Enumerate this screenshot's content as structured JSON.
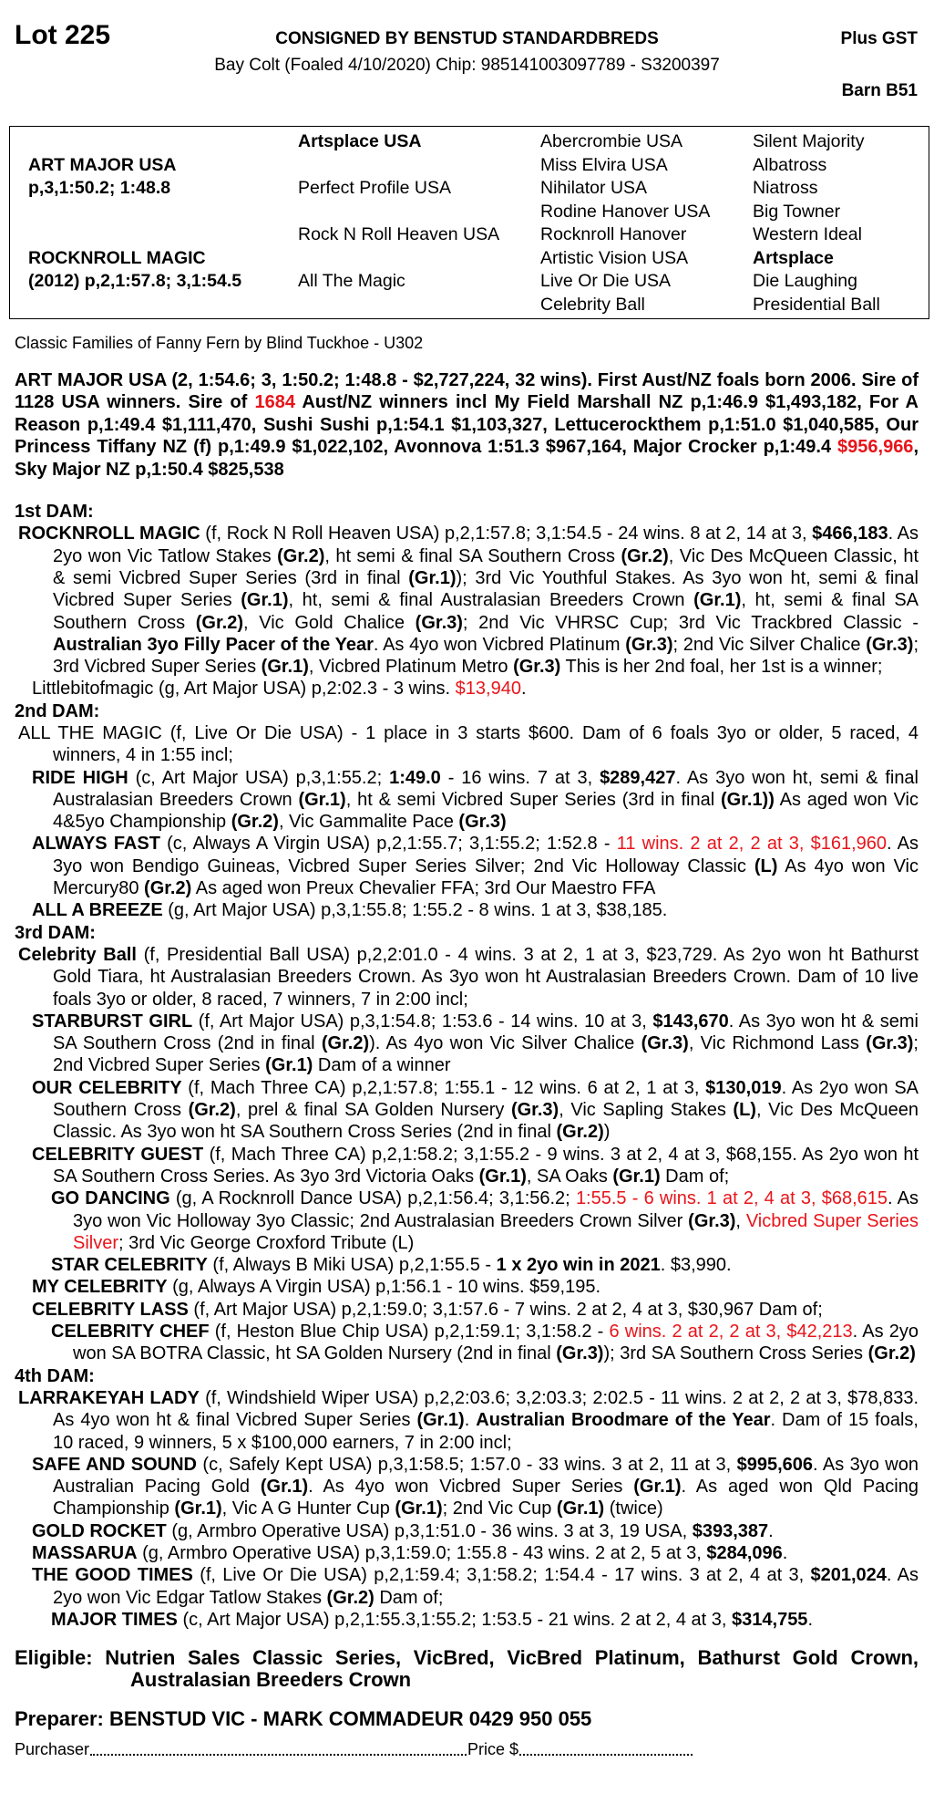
{
  "header": {
    "lot": "Lot 225",
    "consigned": "CONSIGNED BY BENSTUD STANDARDBREDS",
    "gst": "Plus GST",
    "description": "Bay Colt (Foaled 4/10/2020) Chip: 985141003097789 - S3200397",
    "barn": "Barn B51"
  },
  "pedigree": {
    "sire": "ART MAJOR USA",
    "sire_record": "p,3,1:50.2; 1:48.8",
    "dam": "ROCKNROLL MAGIC",
    "dam_record": "(2012) p,2,1:57.8; 3,1:54.5",
    "gen2": [
      "Artsplace USA",
      "Perfect Profile USA",
      "Rock N Roll Heaven USA",
      "All The Magic"
    ],
    "gen3": [
      "Abercrombie USA",
      "Miss Elvira USA",
      "Nihilator USA",
      "Rodine Hanover USA",
      "Rocknroll Hanover",
      "Artistic Vision USA",
      "Live Or Die USA",
      "Celebrity Ball"
    ],
    "gen4": [
      "Silent Majority",
      "Albatross",
      "Niatross",
      "Big Towner",
      "Western Ideal",
      "Artsplace",
      "Die Laughing",
      "Presidential Ball"
    ]
  },
  "family": "Classic Families of Fanny Fern by Blind Tuckhoe - U302",
  "colors": {
    "highlight": "#e8141a"
  },
  "sire_para": [
    [
      "ART MAJOR USA (2, 1:54.6; 3, 1:50.2; 1:48.8 - $2,727,224, 32 wins). First Aust/NZ foals born 2006. Sire of 1128 USA winners. Sire of ",
      ""
    ],
    [
      "1684",
      "r"
    ],
    [
      " Aust/NZ winners incl My Field Marshall NZ p,1:46.9 $1,493,182, For A Reason p,1:49.4 $1,111,470, Sushi Sushi p,1:54.1 $1,103,327, Lettucerockthem p,1:51.0 $1,040,585, Our Princess Tiffany NZ (f) p,1:49.9 $1,022,102, Avonnova 1:51.3 $967,164, Major Crocker p,1:49.4 ",
      ""
    ],
    [
      "$956,966",
      "r"
    ],
    [
      ", Sky Major NZ p,1:50.4 $825,538",
      ""
    ]
  ],
  "dams": [
    {
      "heading": "1st DAM:",
      "entries": [
        {
          "level": 0,
          "segs": [
            [
              "ROCKNROLL MAGIC",
              "b"
            ],
            [
              " (f, Rock N Roll Heaven USA) p,2,1:57.8; 3,1:54.5 - 24 wins. 8 at 2, 14 at 3, ",
              ""
            ],
            [
              "$466,183",
              "b"
            ],
            [
              ". As 2yo won Vic Tatlow Stakes ",
              ""
            ],
            [
              "(Gr.2)",
              "b"
            ],
            [
              ", ht semi & final SA Southern Cross ",
              ""
            ],
            [
              "(Gr.2)",
              "b"
            ],
            [
              ", Vic Des McQueen Classic, ht & semi Vicbred Super Series (3rd in final ",
              ""
            ],
            [
              "(Gr.1)",
              "b"
            ],
            [
              "); 3rd Vic Youthful Stakes. As 3yo won ht, semi & final Vicbred Super Series ",
              ""
            ],
            [
              "(Gr.1)",
              "b"
            ],
            [
              ", ht, semi & final Australasian Breeders Crown ",
              ""
            ],
            [
              "(Gr.1)",
              "b"
            ],
            [
              ", ht, semi & final SA Southern Cross ",
              ""
            ],
            [
              "(Gr.2)",
              "b"
            ],
            [
              ", Vic Gold Chalice ",
              ""
            ],
            [
              "(Gr.3)",
              "b"
            ],
            [
              "; 2nd Vic VHRSC Cup; 3rd Vic Trackbred Classic -",
              ""
            ],
            [
              "Australian 3yo Filly Pacer of the Year",
              "b"
            ],
            [
              ". As 4yo won Vicbred Platinum ",
              ""
            ],
            [
              "(Gr.3)",
              "b"
            ],
            [
              "; 2nd Vic Silver Chalice ",
              ""
            ],
            [
              "(Gr.3)",
              "b"
            ],
            [
              "; 3rd Vicbred Super Series ",
              ""
            ],
            [
              "(Gr.1)",
              "b"
            ],
            [
              ", Vicbred Platinum Metro ",
              ""
            ],
            [
              "(Gr.3)",
              "b"
            ],
            [
              " This is her 2nd foal, her 1st is a winner;",
              ""
            ]
          ]
        },
        {
          "level": 1,
          "segs": [
            [
              "Littlebitofmagic (g, Art Major USA) p,2:02.3 - 3 wins. ",
              ""
            ],
            [
              "$13,940",
              "r"
            ],
            [
              ".",
              ""
            ]
          ]
        }
      ]
    },
    {
      "heading": "2nd DAM:",
      "entries": [
        {
          "level": 0,
          "segs": [
            [
              "ALL THE MAGIC (f, Live Or Die USA) - 1 place in 3 starts $600. Dam of 6 foals 3yo or older, 5 raced, 4 winners, 4 in 1:55 incl;",
              ""
            ]
          ]
        },
        {
          "level": 1,
          "segs": [
            [
              "RIDE HIGH",
              "b"
            ],
            [
              " (c, Art Major USA) p,3,1:55.2; ",
              ""
            ],
            [
              "1:49.0",
              "b"
            ],
            [
              " - 16 wins. 7 at 3, ",
              ""
            ],
            [
              "$289,427",
              "b"
            ],
            [
              ". As 3yo won ht, semi & final Australasian Breeders Crown ",
              ""
            ],
            [
              "(Gr.1)",
              "b"
            ],
            [
              ", ht & semi Vicbred Super Series (3rd in final ",
              ""
            ],
            [
              "(Gr.1))",
              "b"
            ],
            [
              " As aged won Vic 4&5yo Championship ",
              ""
            ],
            [
              "(Gr.2)",
              "b"
            ],
            [
              ", Vic Gammalite Pace ",
              ""
            ],
            [
              "(Gr.3)",
              "b"
            ]
          ]
        },
        {
          "level": 1,
          "segs": [
            [
              "ALWAYS FAST",
              "b"
            ],
            [
              " (c, Always A Virgin USA) p,2,1:55.7; 3,1:55.2; 1:52.8 - ",
              ""
            ],
            [
              "11 wins. 2 at 2, 2 at 3, $161,960",
              "r"
            ],
            [
              ". As 3yo won Bendigo Guineas, Vicbred Super Series Silver; 2nd Vic Holloway Classic ",
              ""
            ],
            [
              "(L)",
              "b"
            ],
            [
              " As 4yo won Vic Mercury80 ",
              ""
            ],
            [
              "(Gr.2)",
              "b"
            ],
            [
              " As aged won Preux Chevalier FFA; 3rd Our Maestro FFA",
              ""
            ]
          ]
        },
        {
          "level": 1,
          "segs": [
            [
              "ALL A BREEZE",
              "b"
            ],
            [
              " (g, Art Major USA) p,3,1:55.8; 1:55.2 - 8 wins. 1 at 3, $38,185.",
              ""
            ]
          ]
        }
      ]
    },
    {
      "heading": "3rd DAM:",
      "entries": [
        {
          "level": 0,
          "segs": [
            [
              "Celebrity Ball",
              "b"
            ],
            [
              " (f, Presidential Ball USA) p,2,2:01.0 - 4 wins. 3 at 2, 1 at 3, $23,729. As 2yo won ht Bathurst Gold Tiara, ht Australasian Breeders Crown. As 3yo won ht Australasian Breeders Crown. Dam of 10 live foals 3yo or older, 8 raced, 7 winners, 7 in 2:00 incl;",
              ""
            ]
          ]
        },
        {
          "level": 1,
          "segs": [
            [
              "STARBURST GIRL",
              "b"
            ],
            [
              " (f, Art Major USA) p,3,1:54.8; 1:53.6 - 14 wins. 10 at 3, ",
              ""
            ],
            [
              "$143,670",
              "b"
            ],
            [
              ". As 3yo won ht & semi SA Southern Cross (2nd in final ",
              ""
            ],
            [
              "(Gr.2)",
              "b"
            ],
            [
              "). As 4yo won Vic Silver Chalice ",
              ""
            ],
            [
              "(Gr.3)",
              "b"
            ],
            [
              ", Vic Richmond Lass ",
              ""
            ],
            [
              "(Gr.3)",
              "b"
            ],
            [
              "; 2nd Vicbred Super Series ",
              ""
            ],
            [
              "(Gr.1)",
              "b"
            ],
            [
              " Dam of a winner",
              ""
            ]
          ]
        },
        {
          "level": 1,
          "segs": [
            [
              "OUR CELEBRITY",
              "b"
            ],
            [
              " (f, Mach Three CA) p,2,1:57.8; 1:55.1 - 12 wins. 6 at 2, 1 at 3, ",
              ""
            ],
            [
              "$130,019",
              "b"
            ],
            [
              ". As 2yo won SA Southern Cross ",
              ""
            ],
            [
              "(Gr.2)",
              "b"
            ],
            [
              ", prel & final SA Golden Nursery ",
              ""
            ],
            [
              "(Gr.3)",
              "b"
            ],
            [
              ", Vic Sapling Stakes ",
              ""
            ],
            [
              "(L)",
              "b"
            ],
            [
              ", Vic Des McQueen Classic. As 3yo won ht SA Southern Cross Series (2nd in final ",
              ""
            ],
            [
              "(Gr.2)",
              "b"
            ],
            [
              ")",
              ""
            ]
          ]
        },
        {
          "level": 1,
          "segs": [
            [
              "CELEBRITY GUEST",
              "b"
            ],
            [
              " (f, Mach Three CA) p,2,1:58.2; 3,1:55.2 - 9 wins. 3 at 2, 4 at 3, $68,155. As 2yo won ht SA Southern Cross Series. As 3yo 3rd Victoria Oaks ",
              ""
            ],
            [
              "(Gr.1)",
              "b"
            ],
            [
              ", SA Oaks ",
              ""
            ],
            [
              "(Gr.1)",
              "b"
            ],
            [
              " Dam of;",
              ""
            ]
          ]
        },
        {
          "level": 2,
          "segs": [
            [
              "GO DANCING",
              "b"
            ],
            [
              " (g, A Rocknroll Dance USA) p,2,1:56.4; 3,1:56.2; ",
              ""
            ],
            [
              "1:55.5 - 6 wins. 1 at 2, 4 at 3, $68,615",
              "r"
            ],
            [
              ". As 3yo won Vic Holloway 3yo Classic; 2nd Australasian Breeders Crown Silver ",
              ""
            ],
            [
              "(Gr.3)",
              "b"
            ],
            [
              ", ",
              ""
            ],
            [
              "Vicbred Super Series Silver",
              "r"
            ],
            [
              "; 3rd Vic George Croxford Tribute (L)",
              ""
            ]
          ]
        },
        {
          "level": 2,
          "segs": [
            [
              "STAR CELEBRITY",
              "b"
            ],
            [
              " (f, Always B Miki USA) p,2,1:55.5 - ",
              ""
            ],
            [
              "1 x 2yo win in 2021",
              "b"
            ],
            [
              ". $3,990.",
              ""
            ]
          ]
        },
        {
          "level": 1,
          "segs": [
            [
              "MY CELEBRITY",
              "b"
            ],
            [
              " (g, Always A Virgin USA) p,1:56.1 - 10 wins. $59,195.",
              ""
            ]
          ]
        },
        {
          "level": 1,
          "segs": [
            [
              "CELEBRITY LASS",
              "b"
            ],
            [
              " (f, Art Major USA) p,2,1:59.0; 3,1:57.6 - 7 wins. 2 at 2, 4 at 3, $30,967 Dam of;",
              ""
            ]
          ]
        },
        {
          "level": 2,
          "segs": [
            [
              "CELEBRITY CHEF",
              "b"
            ],
            [
              " (f, Heston Blue Chip USA) p,2,1:59.1; 3,1:58.2 - ",
              ""
            ],
            [
              "6 wins. 2 at 2, 2 at 3, $42,213",
              "r"
            ],
            [
              ". As 2yo won SA BOTRA Classic, ht SA Golden Nursery (2nd in final ",
              ""
            ],
            [
              "(Gr.3)",
              "b"
            ],
            [
              "); 3rd SA Southern Cross Series ",
              ""
            ],
            [
              "(Gr.2)",
              "b"
            ]
          ]
        }
      ]
    },
    {
      "heading": "4th DAM:",
      "entries": [
        {
          "level": 0,
          "segs": [
            [
              "LARRAKEYAH LADY",
              "b"
            ],
            [
              " (f, Windshield Wiper USA) p,2,2:03.6; 3,2:03.3; 2:02.5 - 11 wins. 2 at 2, 2 at 3, $78,833. As 4yo won ht & final Vicbred Super Series ",
              ""
            ],
            [
              "(Gr.1)",
              "b"
            ],
            [
              ". ",
              ""
            ],
            [
              "Australian Broodmare of the Year",
              "b"
            ],
            [
              ". Dam of 15 foals, 10 raced, 9 winners, 5 x $100,000 earners, 7 in 2:00 incl;",
              ""
            ]
          ]
        },
        {
          "level": 1,
          "segs": [
            [
              "SAFE AND SOUND",
              "b"
            ],
            [
              " (c, Safely Kept USA) p,3,1:58.5; 1:57.0 - 33 wins. 3 at 2, 11 at 3, ",
              ""
            ],
            [
              "$995,606",
              "b"
            ],
            [
              ". As 3yo won Australian Pacing Gold ",
              ""
            ],
            [
              "(Gr.1)",
              "b"
            ],
            [
              ". As 4yo won Vicbred Super Series ",
              ""
            ],
            [
              "(Gr.1)",
              "b"
            ],
            [
              ". As aged won Qld Pacing Championship ",
              ""
            ],
            [
              "(Gr.1)",
              "b"
            ],
            [
              ", Vic A G Hunter Cup ",
              ""
            ],
            [
              "(Gr.1)",
              "b"
            ],
            [
              "; 2nd Vic Cup ",
              ""
            ],
            [
              "(Gr.1)",
              "b"
            ],
            [
              " (twice)",
              ""
            ]
          ]
        },
        {
          "level": 1,
          "segs": [
            [
              "GOLD ROCKET",
              "b"
            ],
            [
              " (g, Armbro Operative USA) p,3,1:51.0 - 36 wins. 3 at 3, 19 USA, ",
              ""
            ],
            [
              "$393,387",
              "b"
            ],
            [
              ".",
              ""
            ]
          ]
        },
        {
          "level": 1,
          "segs": [
            [
              "MASSARUA",
              "b"
            ],
            [
              " (g, Armbro Operative USA) p,3,1:59.0; 1:55.8 - 43 wins. 2 at 2, 5 at 3, ",
              ""
            ],
            [
              "$284,096",
              "b"
            ],
            [
              ".",
              ""
            ]
          ]
        },
        {
          "level": 1,
          "segs": [
            [
              "THE GOOD TIMES",
              "b"
            ],
            [
              " (f, Live Or Die USA) p,2,1:59.4; 3,1:58.2; 1:54.4 - 17 wins. 3 at 2, 4 at 3, ",
              ""
            ],
            [
              "$201,024",
              "b"
            ],
            [
              ". As 2yo won Vic Edgar Tatlow Stakes ",
              ""
            ],
            [
              "(Gr.2)",
              "b"
            ],
            [
              " Dam of;",
              ""
            ]
          ]
        },
        {
          "level": 2,
          "segs": [
            [
              "MAJOR TIMES",
              "b"
            ],
            [
              " (c, Art Major USA) p,2,1:55.3,1:55.2; 1:53.5 - 21 wins. 2 at 2, 4 at 3, ",
              ""
            ],
            [
              "$314,755",
              "b"
            ],
            [
              ".",
              ""
            ]
          ]
        }
      ]
    }
  ],
  "eligible": "Eligible: Nutrien Sales Classic Series, VicBred, VicBred Platinum, Bathurst Gold Crown, Australasian Breeders Crown",
  "preparer": "Preparer: BENSTUD VIC - MARK COMMADEUR 0429 950 055",
  "purchaser_label": "Purchaser",
  "price_label": "Price $"
}
